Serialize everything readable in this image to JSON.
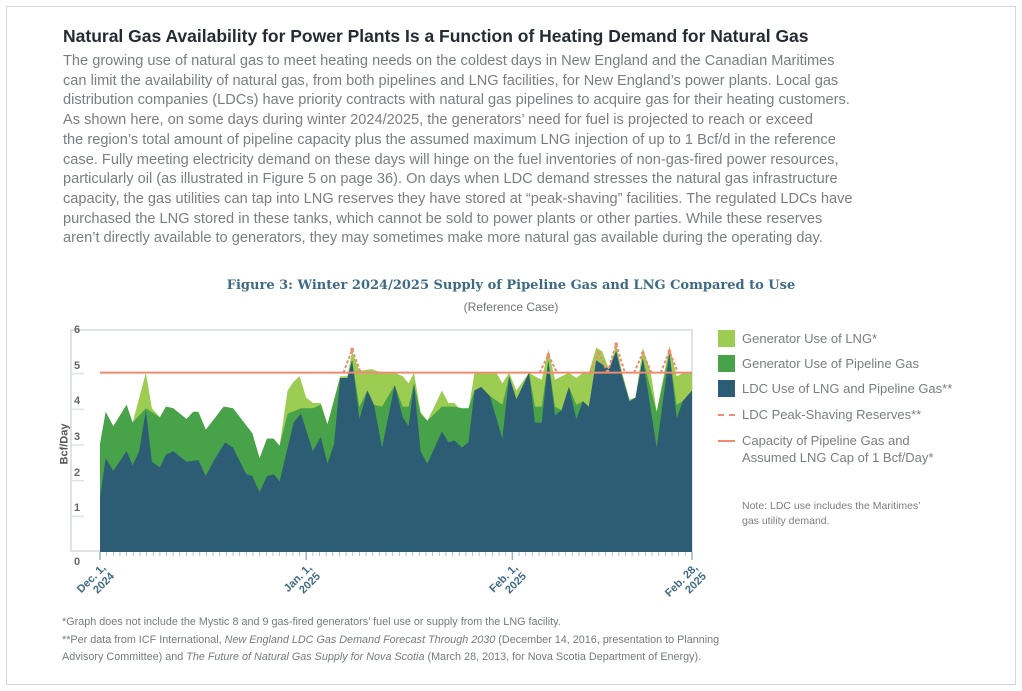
{
  "title": "Natural Gas Availability for Power Plants Is a Function of Heating Demand for Natural Gas",
  "paragraph_lines": [
    "The growing use of natural gas to meet heating needs on the coldest days in New England and the Canadian Maritimes",
    "can limit the availability of natural gas, from both pipelines and LNG facilities, for New England’s power plants. Local gas",
    "distribution companies (LDCs) have priority contracts with natural gas pipelines to acquire gas for their heating customers.",
    "As shown here, on some days during winter 2024/2025, the generators’ need for fuel is projected to reach or exceed",
    "the region’s total amount of pipeline capacity plus the assumed maximum LNG injection of up to 1 Bcf/d in the reference",
    "case. Fully meeting electricity demand on these days will hinge on the fuel inventories of non-gas-fired power resources,",
    "particularly oil (as illustrated in Figure 5 on page 36). On days when LDC demand stresses the natural gas infrastructure",
    "capacity, the gas utilities can tap into LNG reserves they have stored at “peak-shaving” facilities. The regulated LDCs have",
    "purchased the LNG stored in these tanks, which cannot be sold to power plants or other parties. While these reserves",
    "aren’t directly available to generators, they may sometimes make more natural gas available during the operating day."
  ],
  "note": [
    "Note: LDC use includes the Maritimes’",
    "gas utility demand."
  ],
  "footnotes": {
    "f1": "*Graph does not include the Mystic 8 and 9 gas-fired generators’ fuel use or supply from the LNG facility.",
    "f2_a": "**Per data from ICF International, ",
    "f2_b": "New England LDC Gas Demand Forecast Through 2030",
    "f2_c": " (December 14, 2016, presentation to Planning",
    "f3_a": "Advisory Committee) and ",
    "f3_b": "The Future of Natural Gas Supply for Nova Scotia",
    "f3_c": " (March 28, 2013, for Nova Scotia Department of Energy)."
  },
  "chart_data": {
    "type": "area",
    "title": "Figure 3: Winter 2024/2025 Supply of Pipeline Gas and LNG Compared to Use",
    "subtitle": "(Reference Case)",
    "ylabel": "Bcf/Day",
    "xlabel": "",
    "ylim": [
      0,
      6
    ],
    "yticks": [
      "0",
      "1",
      "2",
      "3",
      "4",
      "5",
      "6"
    ],
    "x_unit": "days since Dec. 1, 2024",
    "xlim": [
      0,
      89
    ],
    "xticks": [
      {
        "day": 0,
        "line1": "Dec. 1,",
        "line2": "2024"
      },
      {
        "day": 31,
        "line1": "Jan. 1,",
        "line2": "2025"
      },
      {
        "day": 62,
        "line1": "Feb. 1,",
        "line2": "2025"
      },
      {
        "day": 89,
        "line1": "Feb. 28,",
        "line2": "2025"
      }
    ],
    "capacity": 5.0,
    "colors": {
      "lng": "#9ccd52",
      "pipeline": "#48a24a",
      "ldc": "#2d5d75",
      "capacity": "#ef8b70",
      "peak": "#ef8b70"
    },
    "legend": [
      {
        "key": "lng",
        "label": "Generator Use of LNG*",
        "kind": "box"
      },
      {
        "key": "pipeline",
        "label": "Generator Use of Pipeline Gas",
        "kind": "box"
      },
      {
        "key": "ldc",
        "label": "LDC Use of LNG and Pipeline Gas**",
        "kind": "box"
      },
      {
        "key": "peak",
        "label": "LDC Peak-Shaving Reserves**",
        "kind": "dash"
      },
      {
        "key": "capacity",
        "label": "Capacity of Pipeline Gas and",
        "label2": "Assumed LNG Cap of 1 Bcf/Day*",
        "kind": "line"
      }
    ],
    "series_stacked_tops": {
      "total": [
        [
          0,
          3.0
        ],
        [
          0.85,
          3.9
        ],
        [
          2,
          3.5
        ],
        [
          4,
          4.1
        ],
        [
          4.9,
          3.6
        ],
        [
          6.9,
          5.0
        ],
        [
          7.8,
          4.0
        ],
        [
          9,
          3.75
        ],
        [
          9.9,
          4.05
        ],
        [
          11,
          4.0
        ],
        [
          13,
          3.7
        ],
        [
          14,
          3.9
        ],
        [
          14.8,
          3.9
        ],
        [
          15.9,
          3.4
        ],
        [
          18.6,
          4.05
        ],
        [
          20,
          4.0
        ],
        [
          22.9,
          3.3
        ],
        [
          24,
          2.6
        ],
        [
          25.1,
          3.15
        ],
        [
          26.1,
          3.15
        ],
        [
          27,
          2.95
        ],
        [
          28.2,
          4.5
        ],
        [
          29.1,
          4.75
        ],
        [
          30,
          4.9
        ],
        [
          31,
          4.3
        ],
        [
          32,
          4.15
        ],
        [
          33.2,
          4.15
        ],
        [
          34.2,
          3.55
        ],
        [
          36.1,
          4.9
        ],
        [
          37.2,
          4.9
        ],
        [
          37.9,
          5.6
        ],
        [
          39,
          5.05
        ],
        [
          40.8,
          5.1
        ],
        [
          42.4,
          5.0
        ],
        [
          44.3,
          5.0
        ],
        [
          45.5,
          4.9
        ],
        [
          46.4,
          4.7
        ],
        [
          47.2,
          5.0
        ],
        [
          48.2,
          3.9
        ],
        [
          49.2,
          3.65
        ],
        [
          50.4,
          4.1
        ],
        [
          51.4,
          4.5
        ],
        [
          52.4,
          4.15
        ],
        [
          53.3,
          4.15
        ],
        [
          54.4,
          3.9
        ],
        [
          55.4,
          3.95
        ],
        [
          56.3,
          5.0
        ],
        [
          58.6,
          5.0
        ],
        [
          59.6,
          5.0
        ],
        [
          60.5,
          4.7
        ],
        [
          61.5,
          5.0
        ],
        [
          62.6,
          4.5
        ],
        [
          64.5,
          5.0
        ],
        [
          65.4,
          4.9
        ],
        [
          66.4,
          4.8
        ],
        [
          67.4,
          5.65
        ],
        [
          68.4,
          4.8
        ],
        [
          69.4,
          4.9
        ],
        [
          70.5,
          5.0
        ],
        [
          71.6,
          4.85
        ],
        [
          72.6,
          5.0
        ],
        [
          73.5,
          5.0
        ],
        [
          74.6,
          5.7
        ],
        [
          75.5,
          5.6
        ],
        [
          76.5,
          5.1
        ],
        [
          77.6,
          5.8
        ],
        [
          78.5,
          5.0
        ],
        [
          79.6,
          4.25
        ],
        [
          80.5,
          4.3
        ],
        [
          81.6,
          5.7
        ],
        [
          82.8,
          5.0
        ],
        [
          83.7,
          3.9
        ],
        [
          85.6,
          5.75
        ],
        [
          86.7,
          4.9
        ],
        [
          87.8,
          5.0
        ],
        [
          89,
          5.0
        ]
      ],
      "pipeline": [
        [
          0,
          3.0
        ],
        [
          0.85,
          3.9
        ],
        [
          2,
          3.5
        ],
        [
          4,
          4.1
        ],
        [
          4.9,
          3.6
        ],
        [
          6.9,
          4.0
        ],
        [
          9,
          3.75
        ],
        [
          9.9,
          4.05
        ],
        [
          11,
          4.0
        ],
        [
          13,
          3.7
        ],
        [
          14,
          3.9
        ],
        [
          14.8,
          3.9
        ],
        [
          15.9,
          3.4
        ],
        [
          18.6,
          4.05
        ],
        [
          20,
          4.0
        ],
        [
          22.9,
          3.3
        ],
        [
          24,
          2.6
        ],
        [
          25.1,
          3.15
        ],
        [
          26.1,
          3.15
        ],
        [
          27,
          2.95
        ],
        [
          28.2,
          3.85
        ],
        [
          30.2,
          4.0
        ],
        [
          32,
          4.0
        ],
        [
          33.2,
          4.1
        ],
        [
          34.2,
          3.55
        ],
        [
          36.1,
          4.85
        ],
        [
          37.2,
          4.85
        ],
        [
          37.9,
          5.35
        ],
        [
          39,
          4.05
        ],
        [
          40.2,
          4.5
        ],
        [
          41.2,
          4.1
        ],
        [
          42.4,
          4.05
        ],
        [
          44.3,
          4.65
        ],
        [
          45.5,
          4.05
        ],
        [
          46.4,
          4.05
        ],
        [
          47.2,
          4.7
        ],
        [
          48.2,
          3.85
        ],
        [
          49.2,
          3.65
        ],
        [
          51.4,
          4.05
        ],
        [
          53.3,
          4.05
        ],
        [
          54.4,
          4.0
        ],
        [
          55.4,
          4.0
        ],
        [
          56.3,
          4.5
        ],
        [
          58.6,
          4.35
        ],
        [
          60.5,
          4.1
        ],
        [
          61.5,
          4.9
        ],
        [
          62.6,
          4.25
        ],
        [
          64.5,
          5.0
        ],
        [
          65.4,
          4.05
        ],
        [
          66.4,
          4.05
        ],
        [
          67.4,
          5.35
        ],
        [
          68.4,
          4.05
        ],
        [
          69.4,
          3.95
        ],
        [
          70.5,
          4.6
        ],
        [
          71.6,
          4.1
        ],
        [
          72.6,
          4.2
        ],
        [
          73.5,
          4.05
        ],
        [
          74.6,
          5.35
        ],
        [
          76.5,
          5.1
        ],
        [
          77.6,
          5.6
        ],
        [
          78.5,
          4.9
        ],
        [
          79.6,
          4.2
        ],
        [
          80.5,
          4.3
        ],
        [
          81.6,
          5.4
        ],
        [
          83.7,
          3.9
        ],
        [
          85.6,
          5.55
        ],
        [
          86.7,
          4.1
        ],
        [
          87.6,
          4.2
        ],
        [
          89,
          4.5
        ]
      ],
      "ldc": [
        [
          0,
          1.5
        ],
        [
          0.85,
          2.6
        ],
        [
          2,
          2.25
        ],
        [
          4,
          2.8
        ],
        [
          4.9,
          2.4
        ],
        [
          5.9,
          2.8
        ],
        [
          6.9,
          3.95
        ],
        [
          7.8,
          2.5
        ],
        [
          9,
          2.35
        ],
        [
          9.9,
          2.7
        ],
        [
          11,
          2.8
        ],
        [
          13,
          2.5
        ],
        [
          14.8,
          2.55
        ],
        [
          15.9,
          2.1
        ],
        [
          17,
          2.5
        ],
        [
          18.8,
          3.05
        ],
        [
          20,
          2.9
        ],
        [
          22,
          2.15
        ],
        [
          22.9,
          2.1
        ],
        [
          24,
          1.65
        ],
        [
          25.1,
          2.1
        ],
        [
          26.1,
          2.15
        ],
        [
          27,
          1.95
        ],
        [
          29.1,
          3.6
        ],
        [
          30.2,
          3.85
        ],
        [
          32,
          2.8
        ],
        [
          33.2,
          3.2
        ],
        [
          34.2,
          2.45
        ],
        [
          35.2,
          3.0
        ],
        [
          36.1,
          4.85
        ],
        [
          37.2,
          4.85
        ],
        [
          37.9,
          5.35
        ],
        [
          39,
          3.7
        ],
        [
          40.2,
          4.5
        ],
        [
          41.2,
          4.1
        ],
        [
          42.4,
          2.9
        ],
        [
          44.3,
          4.65
        ],
        [
          45.5,
          3.75
        ],
        [
          46.4,
          3.5
        ],
        [
          47.2,
          4.7
        ],
        [
          48.2,
          2.8
        ],
        [
          49.2,
          2.45
        ],
        [
          51.4,
          3.35
        ],
        [
          52.4,
          3.05
        ],
        [
          53.3,
          3.1
        ],
        [
          54.4,
          2.9
        ],
        [
          55.4,
          3.05
        ],
        [
          56.3,
          4.5
        ],
        [
          57.3,
          4.6
        ],
        [
          58.6,
          4.35
        ],
        [
          60.5,
          3.15
        ],
        [
          61.5,
          4.9
        ],
        [
          62.6,
          4.25
        ],
        [
          64.5,
          5.0
        ],
        [
          65.4,
          3.6
        ],
        [
          66.4,
          3.6
        ],
        [
          67.4,
          5.35
        ],
        [
          68.4,
          3.8
        ],
        [
          69.4,
          3.95
        ],
        [
          70.5,
          4.6
        ],
        [
          71.6,
          3.7
        ],
        [
          72.6,
          4.2
        ],
        [
          73.5,
          4.05
        ],
        [
          74.6,
          5.35
        ],
        [
          76.5,
          5.1
        ],
        [
          77.6,
          5.6
        ],
        [
          78.5,
          4.9
        ],
        [
          79.6,
          4.2
        ],
        [
          80.5,
          4.3
        ],
        [
          81.6,
          5.4
        ],
        [
          83.7,
          2.9
        ],
        [
          85.6,
          5.55
        ],
        [
          86.7,
          3.7
        ],
        [
          87.6,
          4.2
        ],
        [
          89,
          4.5
        ]
      ]
    },
    "peak_shaving": [
      {
        "day": 37.9,
        "value": 5.65
      },
      {
        "day": 67.4,
        "value": 5.5
      },
      {
        "day": 75.0,
        "value": 5.55
      },
      {
        "day": 77.6,
        "value": 5.8
      },
      {
        "day": 81.6,
        "value": 5.55
      },
      {
        "day": 85.6,
        "value": 5.6
      }
    ]
  }
}
